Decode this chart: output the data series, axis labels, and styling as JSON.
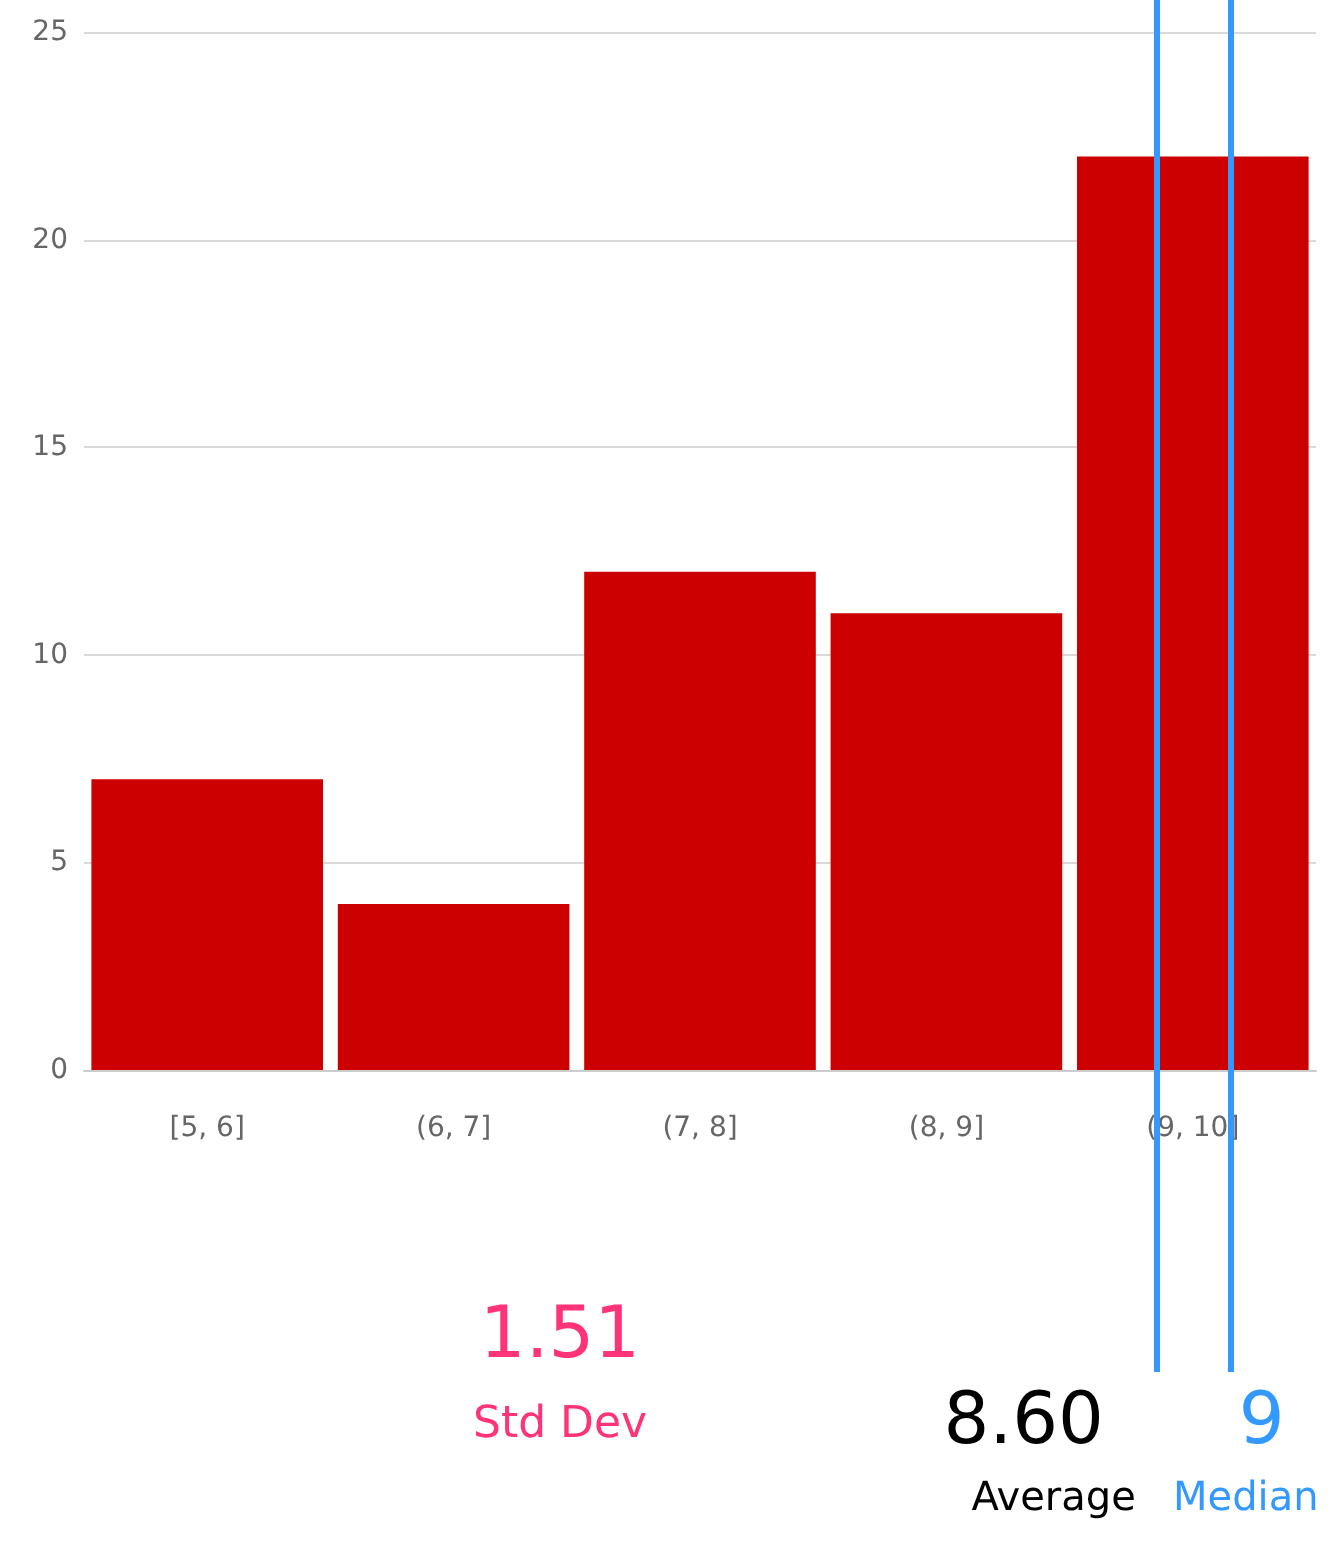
{
  "chart_data": {
    "type": "bar",
    "values": [
      7,
      4,
      12,
      11,
      22
    ],
    "color": "#cc0000",
    "categories": [
      "[5, 6]",
      "(6, 7]",
      "(7, 8]",
      "(8, 9]",
      "(9, 10]"
    ],
    "ylim": [
      0,
      25
    ],
    "yticks": [
      0,
      5,
      10,
      15,
      20,
      25
    ],
    "grid": "y",
    "ref_lines": [
      {
        "axis": "x",
        "value": "(9, 10]",
        "label": "Average",
        "color": "#3399ff"
      },
      {
        "axis": "x",
        "value": "(9, 10]",
        "label": "Median",
        "color": "#3399ff"
      }
    ],
    "annotations": [
      "1.51",
      "Std Dev",
      "8.60",
      "9"
    ]
  }
}
